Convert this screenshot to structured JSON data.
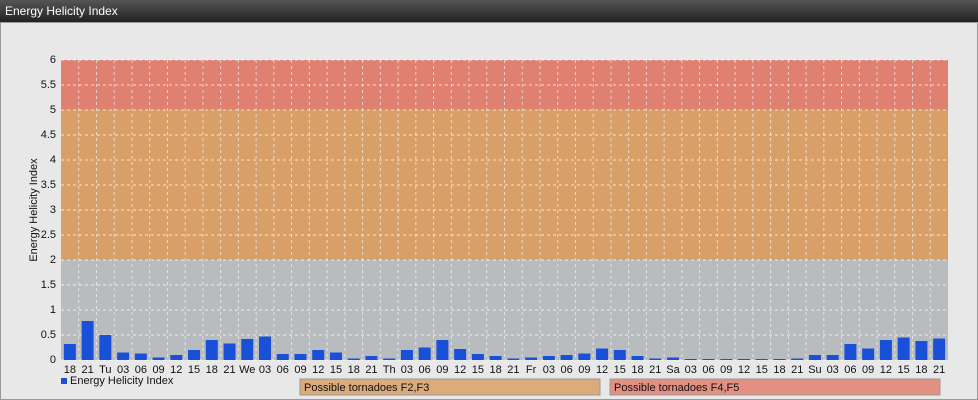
{
  "chart_data": {
    "type": "bar",
    "title": "Energy Helicity Index",
    "y_label": "Energy Helicity Index",
    "categories": [
      "18",
      "21",
      "Tu",
      "03",
      "06",
      "09",
      "12",
      "15",
      "18",
      "21",
      "We",
      "03",
      "06",
      "09",
      "12",
      "15",
      "18",
      "21",
      "Th",
      "03",
      "06",
      "09",
      "12",
      "15",
      "18",
      "21",
      "Fr",
      "03",
      "06",
      "09",
      "12",
      "15",
      "18",
      "21",
      "Sa",
      "03",
      "06",
      "09",
      "12",
      "15",
      "18",
      "21",
      "Su",
      "03",
      "06",
      "09",
      "12",
      "15",
      "18",
      "21"
    ],
    "series": [
      {
        "name": "Energy Helicity Index",
        "color": "#1a50d8",
        "values": [
          0.32,
          0.78,
          0.5,
          0.15,
          0.13,
          0.05,
          0.1,
          0.2,
          0.4,
          0.33,
          0.42,
          0.47,
          0.12,
          0.12,
          0.2,
          0.15,
          0.03,
          0.08,
          0.03,
          0.2,
          0.25,
          0.4,
          0.22,
          0.12,
          0.08,
          0.03,
          0.05,
          0.08,
          0.1,
          0.13,
          0.23,
          0.2,
          0.08,
          0.03,
          0.05,
          0.02,
          0.02,
          0.02,
          0.02,
          0.02,
          0.02,
          0.03,
          0.1,
          0.1,
          0.32,
          0.23,
          0.4,
          0.45,
          0.38,
          0.43
        ]
      }
    ],
    "bands": [
      {
        "from": 0,
        "to": 2,
        "color": "#b9bcbf"
      },
      {
        "from": 2,
        "to": 5,
        "color": "#d8a068",
        "label": "Possible tornadoes F2,F3"
      },
      {
        "from": 5,
        "to": 6,
        "color": "#e08070",
        "label": "Possible tornadoes F4,F5"
      }
    ],
    "ylim": [
      0,
      6
    ],
    "yticks": [
      0,
      0.5,
      1,
      1.5,
      2,
      2.5,
      3,
      3.5,
      4,
      4.5,
      5,
      5.5,
      6
    ],
    "grid": true
  }
}
